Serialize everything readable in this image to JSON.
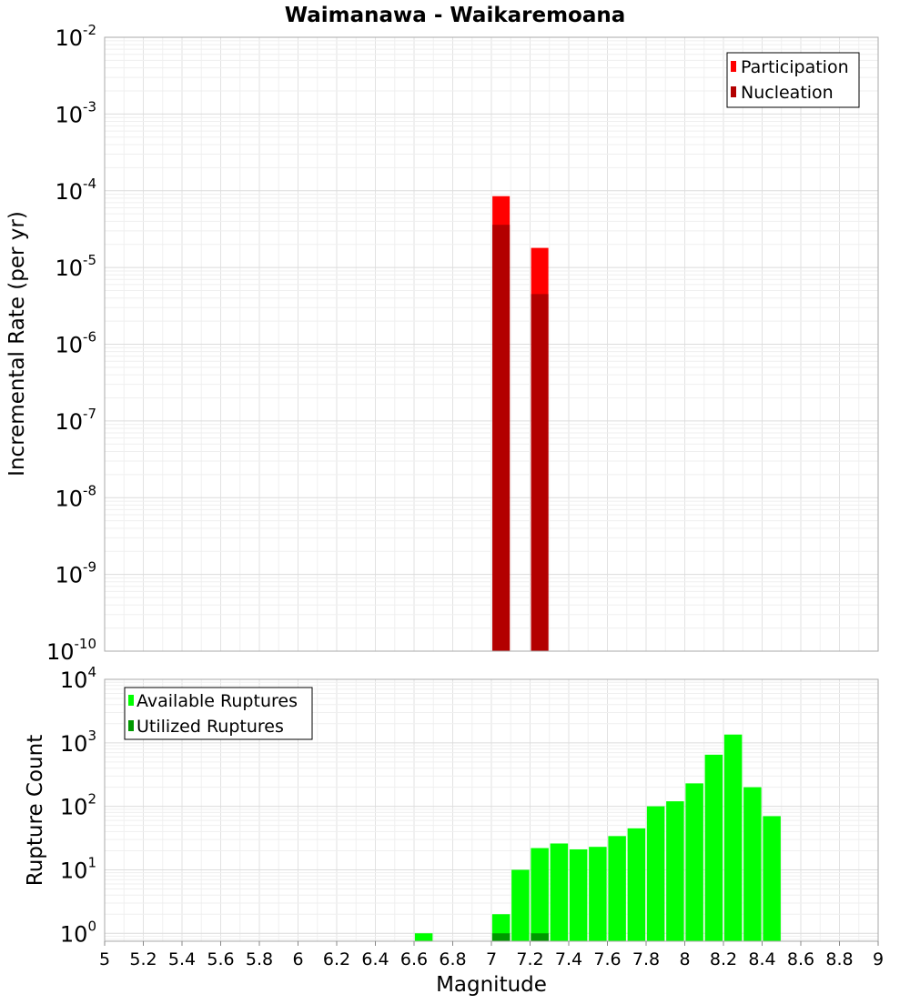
{
  "chart_data": [
    {
      "type": "bar",
      "title": "Waimanawa - Waikaremoana",
      "ylabel": "Incremental Rate (per yr)",
      "xlabel": "",
      "yscale": "log",
      "ylim": [
        1e-10,
        0.01
      ],
      "xlim": [
        5,
        9
      ],
      "y_decades": [
        {
          "base": "10",
          "exp": "-10"
        },
        {
          "base": "10",
          "exp": "-9"
        },
        {
          "base": "10",
          "exp": "-8"
        },
        {
          "base": "10",
          "exp": "-7"
        },
        {
          "base": "10",
          "exp": "-6"
        },
        {
          "base": "10",
          "exp": "-5"
        },
        {
          "base": "10",
          "exp": "-4"
        },
        {
          "base": "10",
          "exp": "-3"
        },
        {
          "base": "10",
          "exp": "-2"
        }
      ],
      "legend": {
        "placement": "top-right",
        "entries": [
          "Participation",
          "Nucleation"
        ]
      },
      "grid": true,
      "series": [
        {
          "name": "Participation",
          "color": "#ff0000",
          "x": [
            7.05,
            7.25
          ],
          "values": [
            8.5e-05,
            1.8e-05
          ]
        },
        {
          "name": "Nucleation",
          "color": "#b30000",
          "x": [
            7.05,
            7.25
          ],
          "values": [
            3.6e-05,
            4.5e-06
          ]
        }
      ]
    },
    {
      "type": "bar",
      "title": "",
      "ylabel": "Rupture Count",
      "xlabel": "Magnitude",
      "yscale": "log",
      "ylim": [
        0.75,
        10000
      ],
      "xlim": [
        5,
        9
      ],
      "x_ticks": [
        "5",
        "5.2",
        "5.4",
        "5.6",
        "5.8",
        "6",
        "6.2",
        "6.4",
        "6.6",
        "6.8",
        "7",
        "7.2",
        "7.4",
        "7.6",
        "7.8",
        "8",
        "8.2",
        "8.4",
        "8.6",
        "8.8",
        "9"
      ],
      "y_decades": [
        {
          "base": "10",
          "exp": "0"
        },
        {
          "base": "10",
          "exp": "1"
        },
        {
          "base": "10",
          "exp": "2"
        },
        {
          "base": "10",
          "exp": "3"
        },
        {
          "base": "10",
          "exp": "4"
        }
      ],
      "legend": {
        "placement": "top-left",
        "entries": [
          "Available Ruptures",
          "Utilized Ruptures"
        ]
      },
      "grid": true,
      "series": [
        {
          "name": "Available Ruptures",
          "color": "#00ff00",
          "x": [
            6.65,
            7.05,
            7.15,
            7.25,
            7.35,
            7.45,
            7.55,
            7.65,
            7.75,
            7.85,
            7.95,
            8.05,
            8.15,
            8.25,
            8.35,
            8.45
          ],
          "values": [
            1,
            2,
            10,
            22,
            26,
            21,
            23,
            34,
            45,
            100,
            120,
            230,
            650,
            1350,
            200,
            70
          ]
        },
        {
          "name": "Utilized Ruptures",
          "color": "#009900",
          "x": [
            7.05,
            7.25
          ],
          "values": [
            1,
            1
          ]
        }
      ]
    }
  ]
}
